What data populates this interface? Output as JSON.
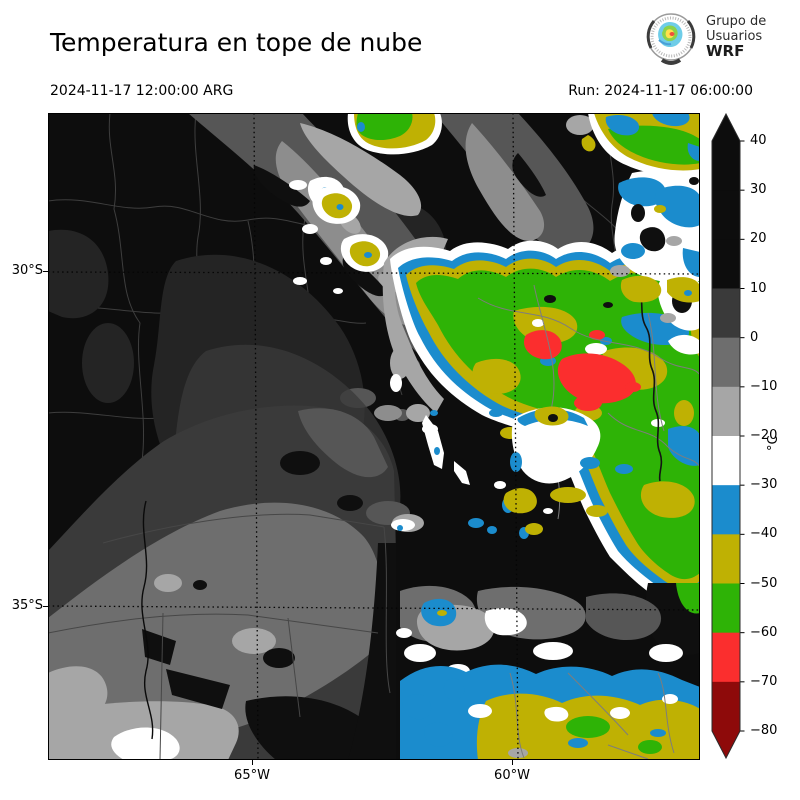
{
  "header": {
    "title": "Temperatura en tope de nube",
    "valid_time": "2024-11-17 12:00:00 ARG",
    "run_label": "Run: 2024-11-17 06:00:00",
    "logo": {
      "line1": "Grupo de",
      "line2": "Usuarios",
      "line3": "WRF"
    }
  },
  "map": {
    "x_ticks": [
      {
        "label": "65°W"
      },
      {
        "label": "60°W"
      }
    ],
    "y_ticks": [
      {
        "label": "30°S"
      },
      {
        "label": "35°S"
      }
    ]
  },
  "colorbar": {
    "units": "°C",
    "tick_labels": [
      "40",
      "30",
      "20",
      "10",
      "0",
      "−10",
      "−20",
      "−30",
      "−40",
      "−50",
      "−60",
      "−70",
      "−80"
    ],
    "segment_colors_top_to_bottom": [
      "#0d0d0d",
      "#0d0d0d",
      "#0d0d0d",
      "#3a3a3a",
      "#6e6e6e",
      "#a6a6a6",
      "#ffffff",
      "#1b8ccd",
      "#bfb103",
      "#2eb306",
      "#fb2e2e",
      "#8e0a0a"
    ],
    "over_arrow_color": "#0d0d0d",
    "under_arrow_color": "#8e0a0a"
  },
  "palette": {
    "map-black": "#0d0d0d",
    "gray-dark": "#3a3a3a",
    "gray-mid": "#565656",
    "gray-med": "#6e6e6e",
    "gray-soft": "#8d8d8d",
    "gray-light": "#a6a6a6",
    "white": "#ffffff",
    "blue": "#1b8ccd",
    "olive": "#bfb103",
    "green": "#2eb306",
    "red": "#fb2e2e",
    "dark-red": "#8e0a0a"
  }
}
